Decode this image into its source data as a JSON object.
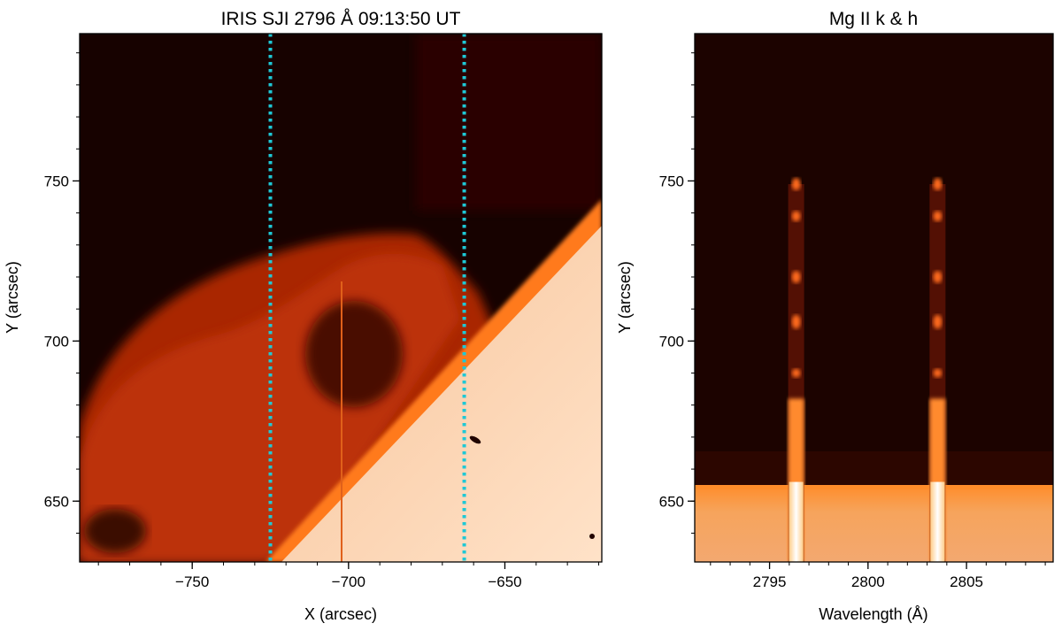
{
  "chart_data": [
    {
      "type": "heatmap",
      "title": "IRIS SJI 2796 Å 09:13:50 UT",
      "xlabel": "X (arcsec)",
      "ylabel": "Y (arcsec)",
      "xlim": [
        -786,
        -619
      ],
      "ylim": [
        631,
        796
      ],
      "xticks": [
        -750,
        -700,
        -650
      ],
      "yticks": [
        650,
        700,
        750
      ],
      "colormap": "red-orange-white (hot)",
      "vertical_lines": [
        {
          "x": -725,
          "style": "dotted",
          "color": "#1ec8d6"
        },
        {
          "x": -663,
          "style": "dotted",
          "color": "#1ec8d6"
        }
      ],
      "features": {
        "limb_line": [
          [
            -725,
            631
          ],
          [
            -619,
            748
          ]
        ],
        "slit_x": -703
      }
    },
    {
      "type": "heatmap",
      "title": "Mg II k & h",
      "xlabel": "Wavelength (Å)",
      "ylabel": "Y (arcsec)",
      "xlim": [
        2791.2,
        2809.4
      ],
      "ylim": [
        631,
        796
      ],
      "xticks": [
        2795,
        2800,
        2805
      ],
      "yticks": [
        650,
        700,
        750
      ],
      "colormap": "red-orange-white (hot)",
      "emission_lines": [
        {
          "wavelength": 2796.35,
          "top_y": 749
        },
        {
          "wavelength": 2803.53,
          "top_y": 749
        }
      ],
      "disk_edge_y": 656
    }
  ]
}
